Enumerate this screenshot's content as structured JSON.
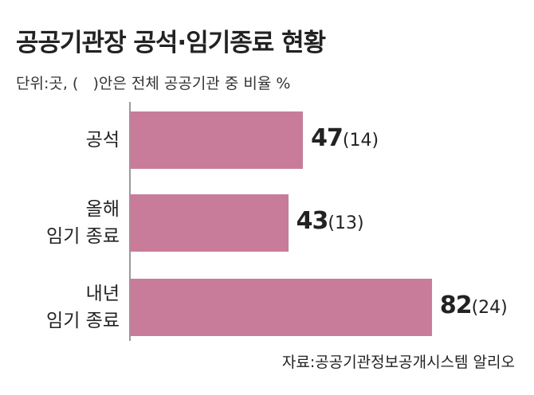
{
  "chart_data": {
    "type": "bar",
    "orientation": "horizontal",
    "title": "공공기관장 공석·임기종료 현황",
    "subtitle": "단위:곳, (   )안은 전체 공공기관 중 비율 %",
    "categories": [
      "공석",
      "올해\n임기 종료",
      "내년\n임기 종료"
    ],
    "values": [
      47,
      43,
      82
    ],
    "shares": {
      "values": [
        14,
        13,
        24
      ],
      "value_labels": [
        "(14)",
        "(13)",
        "(24)"
      ]
    },
    "color": "#c97c99",
    "source": "자료:공공기관정보공개시스템 알리오"
  }
}
